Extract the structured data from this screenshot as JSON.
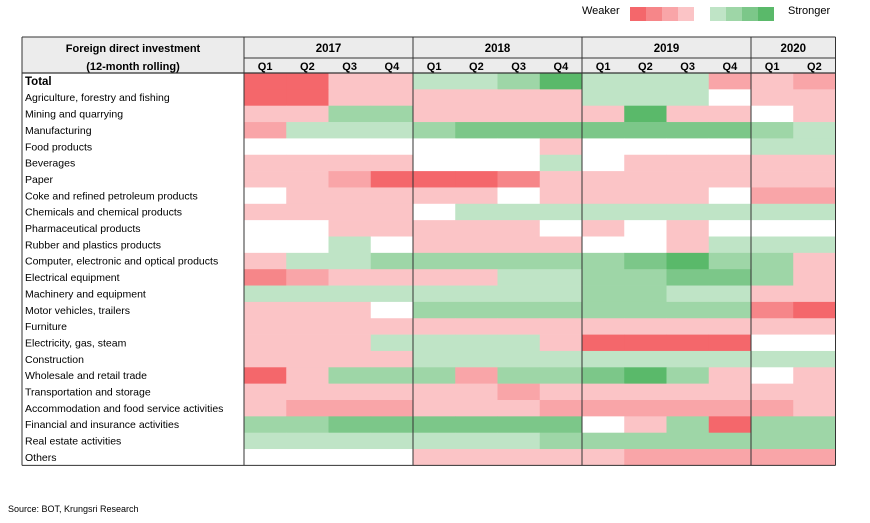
{
  "chart_data": {
    "type": "heatmap",
    "row_header_line1": "Foreign direct investment",
    "row_header_line2": "(12-month rolling)",
    "years": [
      {
        "label": "2017",
        "quarters": [
          "Q1",
          "Q2",
          "Q3",
          "Q4"
        ]
      },
      {
        "label": "2018",
        "quarters": [
          "Q1",
          "Q2",
          "Q3",
          "Q4"
        ]
      },
      {
        "label": "2019",
        "quarters": [
          "Q1",
          "Q2",
          "Q3",
          "Q4"
        ]
      },
      {
        "label": "2020",
        "quarters": [
          "Q1",
          "Q2"
        ]
      }
    ],
    "legend": {
      "weaker": "Weaker",
      "stronger": "Stronger",
      "steps": [
        -4,
        -3,
        -2,
        -1,
        0,
        1,
        2,
        3,
        4
      ]
    },
    "scale_note": "values: -4 (strongly weaker, red) to +4 (strongly stronger, green)",
    "rows": [
      {
        "name": "Total",
        "bold": true,
        "values": [
          -4,
          -4,
          -1,
          -1,
          1,
          1,
          2,
          4,
          1,
          1,
          1,
          -2,
          -1,
          -2
        ]
      },
      {
        "name": "Agriculture, forestry and fishing",
        "values": [
          -4,
          -4,
          -1,
          -1,
          -1,
          -1,
          -1,
          -1,
          1,
          1,
          1,
          0,
          -1,
          -1
        ]
      },
      {
        "name": "Mining and quarrying",
        "values": [
          -1,
          -1,
          2,
          2,
          -1,
          -1,
          -1,
          -1,
          -1,
          4,
          -1,
          -1,
          0,
          -1
        ]
      },
      {
        "name": "Manufacturing",
        "values": [
          -2,
          1,
          1,
          1,
          2,
          3,
          3,
          3,
          3,
          3,
          3,
          3,
          2,
          1
        ]
      },
      {
        "name": "Food products",
        "values": [
          0,
          0,
          0,
          0,
          0,
          0,
          0,
          -1,
          0,
          0,
          0,
          0,
          1,
          1
        ]
      },
      {
        "name": "Beverages",
        "values": [
          -1,
          -1,
          -1,
          -1,
          0,
          0,
          0,
          1,
          0,
          -1,
          -1,
          -1,
          -1,
          -1
        ]
      },
      {
        "name": "Paper",
        "values": [
          -1,
          -1,
          -2,
          -4,
          -4,
          -4,
          -3,
          -1,
          -1,
          -1,
          -1,
          -1,
          -1,
          -1
        ]
      },
      {
        "name": "Coke and refined petroleum products",
        "values": [
          0,
          -1,
          -1,
          -1,
          -1,
          -1,
          0,
          -1,
          -1,
          -1,
          -1,
          0,
          -2,
          -2
        ]
      },
      {
        "name": "Chemicals and chemical products",
        "values": [
          -1,
          -1,
          -1,
          -1,
          0,
          1,
          1,
          1,
          1,
          1,
          1,
          1,
          1,
          1
        ]
      },
      {
        "name": "Pharmaceutical products",
        "values": [
          0,
          0,
          -1,
          -1,
          -1,
          -1,
          -1,
          0,
          -1,
          0,
          -1,
          0,
          0,
          0
        ]
      },
      {
        "name": "Rubber and plastics products",
        "values": [
          0,
          0,
          1,
          0,
          -1,
          -1,
          -1,
          -1,
          0,
          0,
          -1,
          1,
          1,
          1
        ]
      },
      {
        "name": "Computer, electronic and optical products",
        "values": [
          -1,
          1,
          1,
          2,
          2,
          2,
          2,
          2,
          2,
          3,
          4,
          2,
          2,
          -1
        ]
      },
      {
        "name": "Electrical equipment",
        "values": [
          -3,
          -2,
          -1,
          -1,
          -1,
          -1,
          1,
          1,
          2,
          2,
          3,
          3,
          2,
          -1
        ]
      },
      {
        "name": "Machinery and equipment",
        "values": [
          1,
          1,
          1,
          1,
          1,
          1,
          1,
          1,
          2,
          2,
          1,
          1,
          -1,
          -1
        ]
      },
      {
        "name": "Motor vehicles, trailers",
        "values": [
          -1,
          -1,
          -1,
          0,
          2,
          2,
          2,
          2,
          2,
          2,
          2,
          2,
          -3,
          -4
        ]
      },
      {
        "name": "Furniture",
        "values": [
          -1,
          -1,
          -1,
          -1,
          -1,
          -1,
          -1,
          -1,
          -1,
          -1,
          -1,
          -1,
          -1,
          -1
        ]
      },
      {
        "name": "Electricity, gas, steam",
        "values": [
          -1,
          -1,
          -1,
          1,
          1,
          1,
          1,
          -1,
          -4,
          -4,
          -4,
          -4,
          0,
          0
        ]
      },
      {
        "name": "Construction",
        "values": [
          -1,
          -1,
          -1,
          -1,
          1,
          1,
          1,
          1,
          1,
          1,
          1,
          1,
          1,
          1
        ]
      },
      {
        "name": "Wholesale and retail trade",
        "values": [
          -4,
          -1,
          2,
          2,
          2,
          -2,
          2,
          2,
          3,
          4,
          2,
          -1,
          0,
          -1
        ]
      },
      {
        "name": "Transportation and storage",
        "values": [
          -1,
          -1,
          -1,
          -1,
          -1,
          -1,
          -2,
          -1,
          -1,
          -1,
          -1,
          -1,
          -1,
          -1
        ]
      },
      {
        "name": "Accommodation and food service activities",
        "values": [
          -1,
          -2,
          -2,
          -2,
          -1,
          -1,
          -1,
          -2,
          -2,
          -2,
          -2,
          -2,
          -2,
          -1
        ]
      },
      {
        "name": "Financial and insurance activities",
        "values": [
          2,
          2,
          3,
          3,
          3,
          3,
          3,
          3,
          0,
          -1,
          2,
          -4,
          2,
          2
        ]
      },
      {
        "name": "Real estate activities",
        "values": [
          1,
          1,
          1,
          1,
          1,
          1,
          1,
          2,
          2,
          2,
          2,
          2,
          2,
          2
        ]
      },
      {
        "name": "Others",
        "values": [
          0,
          0,
          0,
          0,
          -1,
          -1,
          -1,
          -1,
          -1,
          -2,
          -2,
          -2,
          -2,
          -2
        ]
      }
    ]
  },
  "source": "Source: BOT, Krungsri Research",
  "colors": {
    "red_strong": "#f4676b",
    "green_strong": "#5ab96a",
    "neutral": "#ffffff",
    "header_bg": "#ececec",
    "border": "#333333"
  }
}
